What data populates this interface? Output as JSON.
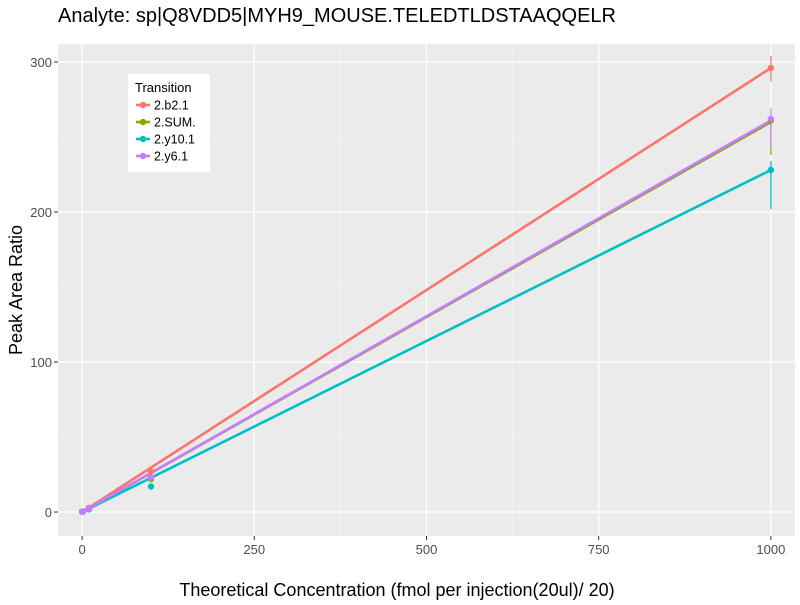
{
  "chart_data": {
    "type": "line",
    "title": "Analyte: sp|Q8VDD5|MYH9_MOUSE.TELEDTLDSTAAQQELR",
    "xlabel": "Theoretical Concentration (fmol per injection(20ul)/ 20)",
    "ylabel": "Peak Area Ratio",
    "xlim": [
      -35,
      1035
    ],
    "ylim": [
      -16,
      312
    ],
    "x_ticks": [
      0,
      250,
      500,
      750,
      1000
    ],
    "y_ticks": [
      0,
      100,
      200,
      300
    ],
    "x_tick_labels": [
      "0",
      "250",
      "500",
      "750",
      "1000"
    ],
    "y_tick_labels": [
      "0",
      "100",
      "200",
      "300"
    ],
    "legend": {
      "title": "Transition",
      "placement": "top-left"
    },
    "series": [
      {
        "name": "2.b2.1",
        "color": "#F8766D",
        "fit": [
          [
            0,
            0
          ],
          [
            1000,
            296
          ]
        ],
        "points": [
          {
            "x": 0,
            "y": 0.3,
            "lo": 0.3,
            "hi": 0.3
          },
          {
            "x": 1,
            "y": 0.4,
            "lo": 0.4,
            "hi": 0.4
          },
          {
            "x": 10,
            "y": 2.8,
            "lo": 2.8,
            "hi": 2.8
          },
          {
            "x": 100,
            "y": 27,
            "lo": 24,
            "hi": 29
          },
          {
            "x": 1000,
            "y": 296,
            "lo": 287,
            "hi": 304
          }
        ]
      },
      {
        "name": "2.SUM.",
        "color": "#7CAE00",
        "fit": [
          [
            0,
            0
          ],
          [
            1000,
            260
          ]
        ],
        "points": [
          {
            "x": 0,
            "y": 0.2,
            "lo": 0.2,
            "hi": 0.2
          },
          {
            "x": 1,
            "y": 0.3,
            "lo": 0.3,
            "hi": 0.3
          },
          {
            "x": 10,
            "y": 2.2,
            "lo": 2.2,
            "hi": 2.2
          },
          {
            "x": 100,
            "y": 22,
            "lo": 20,
            "hi": 24
          },
          {
            "x": 1000,
            "y": 261,
            "lo": 238,
            "hi": 264
          }
        ]
      },
      {
        "name": "2.y10.1",
        "color": "#00BFC4",
        "fit": [
          [
            0,
            0
          ],
          [
            1000,
            228
          ]
        ],
        "points": [
          {
            "x": 0,
            "y": 0.2,
            "lo": 0.2,
            "hi": 0.2
          },
          {
            "x": 1,
            "y": 0.2,
            "lo": 0.2,
            "hi": 0.2
          },
          {
            "x": 10,
            "y": 1.8,
            "lo": 1.8,
            "hi": 1.8
          },
          {
            "x": 100,
            "y": 17,
            "lo": 15,
            "hi": 18
          },
          {
            "x": 1000,
            "y": 228,
            "lo": 202,
            "hi": 234
          }
        ]
      },
      {
        "name": "2.y6.1",
        "color": "#C77CFF",
        "fit": [
          [
            0,
            0
          ],
          [
            1000,
            261
          ]
        ],
        "points": [
          {
            "x": 0,
            "y": 0.2,
            "lo": 0.2,
            "hi": 0.2
          },
          {
            "x": 1,
            "y": 0.3,
            "lo": 0.3,
            "hi": 0.3
          },
          {
            "x": 10,
            "y": 2.3,
            "lo": 2.3,
            "hi": 2.3
          },
          {
            "x": 100,
            "y": 23,
            "lo": 21,
            "hi": 24
          },
          {
            "x": 1000,
            "y": 262,
            "lo": 244,
            "hi": 269
          }
        ]
      }
    ]
  }
}
